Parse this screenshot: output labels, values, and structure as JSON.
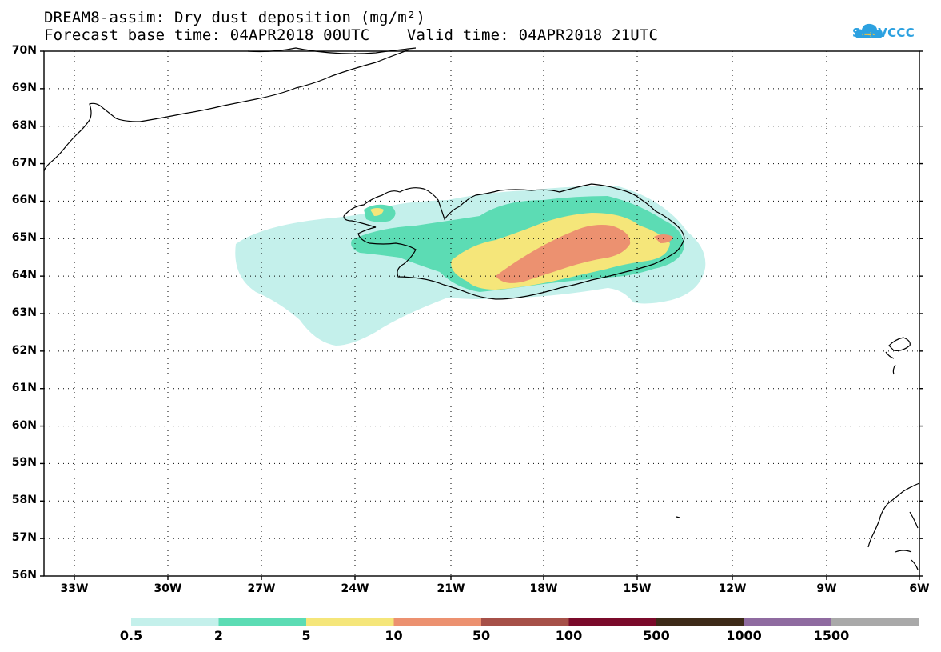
{
  "header": {
    "title_line1": "DREAM8-assim: Dry dust deposition (mg/m²)",
    "title_line2": "Forecast base time: 04APR2018 00UTC    Valid time: 04APR2018 21UTC"
  },
  "logo": {
    "text": "SEEVCCC",
    "icon": "cloud-icon"
  },
  "map": {
    "lat_labels": [
      "70N",
      "69N",
      "68N",
      "67N",
      "66N",
      "65N",
      "64N",
      "63N",
      "62N",
      "61N",
      "60N",
      "59N",
      "58N",
      "57N",
      "56N"
    ],
    "lon_labels": [
      "33W",
      "30W",
      "27W",
      "24W",
      "21W",
      "18W",
      "15W",
      "12W",
      "9W",
      "6W"
    ],
    "grid": "dotted"
  },
  "colorbar": {
    "labels": [
      "0.5",
      "2",
      "5",
      "10",
      "50",
      "100",
      "500",
      "1000",
      "1500"
    ],
    "colors": [
      "#c4f0eb",
      "#5cdcb4",
      "#f5e67a",
      "#ec9170",
      "#a65048",
      "#7a0a2a",
      "#3d2a18",
      "#8f6ba0",
      "#a9a9a9"
    ]
  },
  "colors": {
    "level_0_5": "#c4f0eb",
    "level_2": "#5cdcb4",
    "level_5": "#f5e67a",
    "level_10": "#ec9170"
  }
}
